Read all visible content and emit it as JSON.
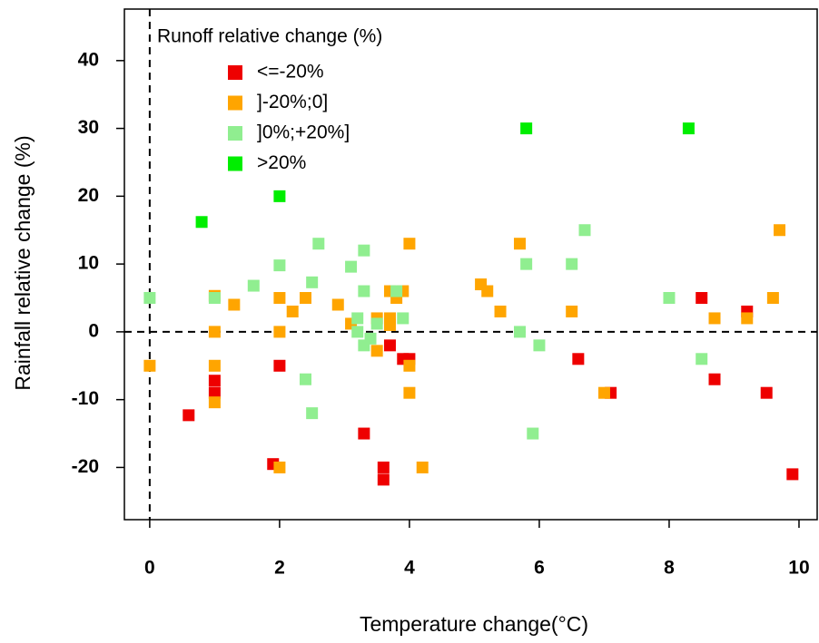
{
  "chart_data": {
    "type": "scatter",
    "xlabel": "Temperature change(°C)",
    "ylabel": "Rainfall relative change (%)",
    "legend_title": "Runoff relative change (%)",
    "xlim": [
      -0.39,
      10.28
    ],
    "ylim": [
      -27.7,
      47.6
    ],
    "xticks": [
      0,
      2,
      4,
      6,
      8,
      10
    ],
    "yticks": [
      -20,
      -10,
      0,
      10,
      20,
      30,
      40
    ],
    "hlines": [
      0
    ],
    "vlines": [
      0
    ],
    "legend": "top-left",
    "series": [
      {
        "name": "<=-20%",
        "color": "#ee0000",
        "x": [
          0.6,
          1,
          1,
          1.9,
          2,
          3.3,
          3.6,
          3.6,
          3.7,
          3.9,
          4,
          6.6,
          7.1,
          8.5,
          8.7,
          9.2,
          9.5,
          9.9
        ],
        "values": [
          -12.3,
          -9,
          -7.2,
          -19.5,
          -5,
          -15,
          -20,
          -21.8,
          -2,
          -4,
          -4,
          -4,
          -9,
          5,
          -7,
          3,
          -9,
          -21
        ]
      },
      {
        "name": "]-20%;0]",
        "color": "#ffa500",
        "x": [
          0,
          1,
          1,
          1,
          1,
          1.3,
          2,
          2,
          2,
          2.2,
          2.4,
          2.9,
          3.1,
          3.5,
          3.5,
          3.7,
          3.7,
          3.7,
          3.8,
          3.9,
          4,
          4,
          4,
          4.2,
          5.1,
          5.2,
          5.4,
          5.7,
          6.5,
          7,
          8.7,
          9.2,
          9.6,
          9.7
        ],
        "values": [
          -5,
          5.3,
          0,
          -5,
          -10.4,
          4,
          5,
          0,
          -20,
          3,
          5,
          4,
          1.2,
          2,
          -2.8,
          6,
          2,
          1,
          5,
          6,
          13,
          -5,
          -9,
          -20,
          7,
          6,
          3,
          13,
          3,
          -9,
          2,
          2,
          5,
          15
        ]
      },
      {
        "name": "]0%;+20%]",
        "color": "#90ee90",
        "x": [
          0,
          1,
          1.6,
          2,
          2.4,
          2.5,
          2.5,
          2.6,
          3.1,
          3.2,
          3.2,
          3.3,
          3.3,
          3.3,
          3.4,
          3.5,
          3.8,
          3.9,
          5.7,
          5.8,
          5.9,
          6,
          6.5,
          6.7,
          8,
          8.5
        ],
        "values": [
          5,
          5,
          6.8,
          9.8,
          -7,
          7.3,
          -12,
          13,
          9.6,
          2,
          0,
          12,
          6,
          -2,
          -1,
          1.2,
          6,
          2,
          0,
          10,
          -15,
          -2,
          10,
          15,
          5,
          -4
        ]
      },
      {
        "name": ">20%",
        "color": "#00ee00",
        "x": [
          0.8,
          2,
          5.8,
          8.3
        ],
        "values": [
          16.2,
          20,
          30,
          30
        ]
      }
    ]
  }
}
